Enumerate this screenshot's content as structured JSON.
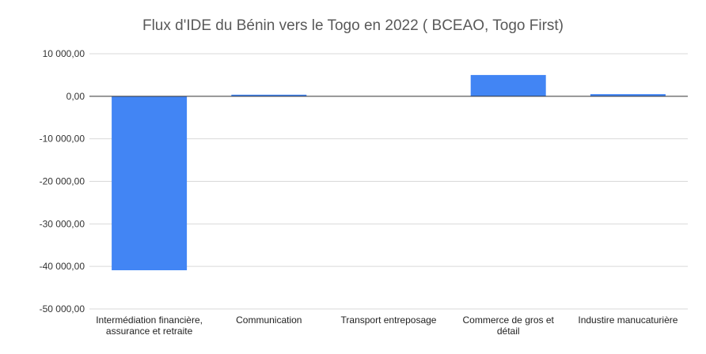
{
  "chart_data": {
    "type": "bar",
    "title": "Flux d'IDE du Bénin vers le Togo en 2022 ( BCEAO, Togo First)",
    "xlabel": "",
    "ylabel": "",
    "categories": [
      [
        "Intermédiation financière,",
        "assurance et retraite"
      ],
      [
        "Communication"
      ],
      [
        "Transport entreposage"
      ],
      [
        "Commerce de gros et",
        "détail"
      ],
      [
        "Industire manucaturière"
      ]
    ],
    "values": [
      -40900,
      350,
      0,
      5000,
      500
    ],
    "ylim": [
      -50000,
      10000
    ],
    "yticks": [
      10000,
      0,
      -10000,
      -20000,
      -30000,
      -40000,
      -50000
    ],
    "ytick_labels": [
      "10 000,00",
      "0,00",
      "-10 000,00",
      "-20 000,00",
      "-30 000,00",
      "-40 000,00",
      "-50 000,00"
    ],
    "grid": true,
    "legend": "none",
    "bar_color": "#4285f4"
  }
}
